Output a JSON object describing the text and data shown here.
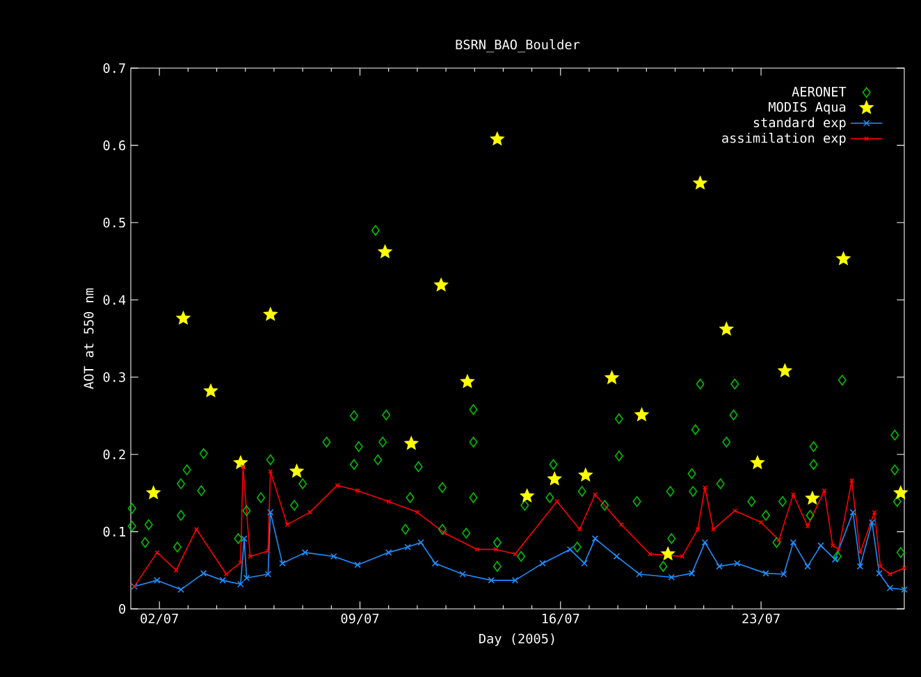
{
  "chart_data": {
    "type": "line",
    "title": "BSRN_BAO_Boulder",
    "xlabel": "Day (2005)",
    "ylabel": "AOT at 550 nm",
    "xlim": [
      "2005-07-01",
      "2005-07-28"
    ],
    "ylim": [
      0,
      0.7
    ],
    "xticks": [
      {
        "value": "2005-07-02",
        "label": "02/07"
      },
      {
        "value": "2005-07-09",
        "label": "09/07"
      },
      {
        "value": "2005-07-16",
        "label": "16/07"
      },
      {
        "value": "2005-07-23",
        "label": "23/07"
      }
    ],
    "yticks": [
      0,
      0.1,
      0.2,
      0.3,
      0.4,
      0.5,
      0.6,
      0.7
    ],
    "legend": "top right",
    "series": [
      {
        "name": "AERONET",
        "type": "scatter",
        "marker": "diamond",
        "color": "#00c000",
        "x": [
          "2005-07-01T01:00",
          "2005-07-01T01:00",
          "2005-07-01T12:00",
          "2005-07-01T15:00",
          "2005-07-02T15:00",
          "2005-07-02T18:00",
          "2005-07-02T18:00",
          "2005-07-02T23:00",
          "2005-07-03T11:00",
          "2005-07-03T13:00",
          "2005-07-04T18:00",
          "2005-07-05T01:00",
          "2005-07-05T13:00",
          "2005-07-05T21:00",
          "2005-07-06T17:00",
          "2005-07-07T00:00",
          "2005-07-07T20:00",
          "2005-07-08T19:00",
          "2005-07-08T23:00",
          "2005-07-08T19:00",
          "2005-07-09T13:00",
          "2005-07-09T15:00",
          "2005-07-09T19:00",
          "2005-07-09T22:00",
          "2005-07-10T14:00",
          "2005-07-10T18:00",
          "2005-07-11T01:00",
          "2005-07-11T21:00",
          "2005-07-11T21:00",
          "2005-07-12T17:00",
          "2005-07-12T23:00",
          "2005-07-12T23:00",
          "2005-07-12T23:00",
          "2005-07-13T19:00",
          "2005-07-13T19:00",
          "2005-07-14T15:00",
          "2005-07-14T18:00",
          "2005-07-15T15:00",
          "2005-07-15T18:00",
          "2005-07-16T14:00",
          "2005-07-16T18:00",
          "2005-07-17T13:00",
          "2005-07-18T01:00",
          "2005-07-18T01:00",
          "2005-07-18T16:00",
          "2005-07-19T14:00",
          "2005-07-19T20:00",
          "2005-07-19T21:00",
          "2005-07-20T14:00",
          "2005-07-20T15:00",
          "2005-07-20T17:00",
          "2005-07-20T21:00",
          "2005-07-21T14:00",
          "2005-07-21T19:00",
          "2005-07-22T01:00",
          "2005-07-22T02:00",
          "2005-07-22T16:00",
          "2005-07-23T04:00",
          "2005-07-23T13:00",
          "2005-07-23T18:00",
          "2005-07-24T17:00",
          "2005-07-24T20:00",
          "2005-07-24T20:00",
          "2005-07-25T16:00",
          "2005-07-25T20:00",
          "2005-07-27T16:00",
          "2005-07-27T16:00",
          "2005-07-27T18:00",
          "2005-07-27T21:00"
        ],
        "values": [
          0.13,
          0.107,
          0.086,
          0.109,
          0.08,
          0.162,
          0.121,
          0.18,
          0.153,
          0.201,
          0.091,
          0.127,
          0.144,
          0.193,
          0.134,
          0.162,
          0.216,
          0.25,
          0.21,
          0.187,
          0.49,
          0.193,
          0.216,
          0.251,
          0.103,
          0.144,
          0.184,
          0.157,
          0.103,
          0.098,
          0.258,
          0.216,
          0.144,
          0.086,
          0.055,
          0.068,
          0.134,
          0.144,
          0.187,
          0.08,
          0.152,
          0.134,
          0.246,
          0.198,
          0.139,
          0.055,
          0.152,
          0.091,
          0.175,
          0.152,
          0.232,
          0.291,
          0.162,
          0.216,
          0.251,
          0.291,
          0.139,
          0.121,
          0.086,
          0.139,
          0.121,
          0.21,
          0.187,
          0.068,
          0.296,
          0.225,
          0.18,
          0.139,
          0.073
        ]
      },
      {
        "name": "MODIS Aqua",
        "type": "scatter",
        "marker": "star",
        "color": "#ffff00",
        "x": [
          "2005-07-01T19:00",
          "2005-07-02T20:00",
          "2005-07-03T19:00",
          "2005-07-04T20:00",
          "2005-07-05T21:00",
          "2005-07-06T19:00",
          "2005-07-09T21:00",
          "2005-07-10T19:00",
          "2005-07-11T20:00",
          "2005-07-12T18:00",
          "2005-07-13T19:00",
          "2005-07-14T20:00",
          "2005-07-15T19:00",
          "2005-07-16T21:00",
          "2005-07-17T19:00",
          "2005-07-18T20:00",
          "2005-07-19T18:00",
          "2005-07-20T21:00",
          "2005-07-21T19:00",
          "2005-07-22T21:00",
          "2005-07-23T20:00",
          "2005-07-24T19:00",
          "2005-07-25T21:00",
          "2005-07-27T21:00"
        ],
        "values": [
          0.15,
          0.376,
          0.282,
          0.189,
          0.381,
          0.178,
          0.462,
          0.214,
          0.419,
          0.294,
          0.608,
          0.146,
          0.168,
          0.173,
          0.299,
          0.251,
          0.071,
          0.551,
          0.362,
          0.189,
          0.308,
          0.143,
          0.453,
          0.15
        ]
      },
      {
        "name": "standard exp",
        "marker": "cross",
        "color": "#1e8fff",
        "x": [
          "2005-07-01T03:00",
          "2005-07-01T22:00",
          "2005-07-02T18:00",
          "2005-07-03T13:00",
          "2005-07-04T05:00",
          "2005-07-04T20:00",
          "2005-07-04T23:00",
          "2005-07-05T01:00",
          "2005-07-05T19:00",
          "2005-07-05T21:00",
          "2005-07-06T07:00",
          "2005-07-07T02:00",
          "2005-07-08T02:00",
          "2005-07-08T22:00",
          "2005-07-10T00:00",
          "2005-07-10T16:00",
          "2005-07-11T03:00",
          "2005-07-11T15:00",
          "2005-07-12T14:00",
          "2005-07-13T14:00",
          "2005-07-14T10:00",
          "2005-07-15T09:00",
          "2005-07-16T08:00",
          "2005-07-16T20:00",
          "2005-07-17T05:00",
          "2005-07-17T23:00",
          "2005-07-18T18:00",
          "2005-07-19T21:00",
          "2005-07-20T14:00",
          "2005-07-21T01:00",
          "2005-07-21T13:00",
          "2005-07-22T04:00",
          "2005-07-23T04:00",
          "2005-07-23T19:00",
          "2005-07-24T03:00",
          "2005-07-24T15:00",
          "2005-07-25T02:00",
          "2005-07-25T14:00",
          "2005-07-26T05:00",
          "2005-07-26T11:00",
          "2005-07-26T21:00",
          "2005-07-27T03:00",
          "2005-07-27T12:00",
          "2005-07-28T00:00"
        ],
        "values": [
          0.029,
          0.037,
          0.025,
          0.046,
          0.037,
          0.032,
          0.091,
          0.04,
          0.045,
          0.125,
          0.059,
          0.073,
          0.068,
          0.057,
          0.073,
          0.08,
          0.086,
          0.059,
          0.045,
          0.037,
          0.037,
          0.059,
          0.077,
          0.059,
          0.091,
          0.068,
          0.045,
          0.041,
          0.046,
          0.086,
          0.055,
          0.059,
          0.046,
          0.045,
          0.086,
          0.055,
          0.082,
          0.064,
          0.125,
          0.055,
          0.112,
          0.046,
          0.027,
          0.025
        ]
      },
      {
        "name": "assimilation exp",
        "marker": "cross",
        "color": "#ff0000",
        "x": [
          "2005-07-01T03:00",
          "2005-07-01T22:00",
          "2005-07-02T14:00",
          "2005-07-03T07:00",
          "2005-07-04T08:00",
          "2005-07-04T20:00",
          "2005-07-04T22:00",
          "2005-07-05T04:00",
          "2005-07-05T19:00",
          "2005-07-05T21:00",
          "2005-07-06T11:00",
          "2005-07-07T06:00",
          "2005-07-08T05:00",
          "2005-07-08T22:00",
          "2005-07-10T00:00",
          "2005-07-11T00:00",
          "2005-07-11T23:00",
          "2005-07-13T02:00",
          "2005-07-13T18:00",
          "2005-07-14T10:00",
          "2005-07-15T21:00",
          "2005-07-16T16:00",
          "2005-07-17T05:00",
          "2005-07-18T03:00",
          "2005-07-19T03:00",
          "2005-07-20T06:00",
          "2005-07-20T19:00",
          "2005-07-21T01:00",
          "2005-07-21T08:00",
          "2005-07-22T02:00",
          "2005-07-23T00:00",
          "2005-07-23T15:00",
          "2005-07-24T03:00",
          "2005-07-24T15:00",
          "2005-07-25T05:00",
          "2005-07-25T12:00",
          "2005-07-25T17:00",
          "2005-07-26T04:00",
          "2005-07-26T11:00",
          "2005-07-26T23:00",
          "2005-07-27T04:00",
          "2005-07-27T12:00",
          "2005-07-28T00:00"
        ],
        "values": [
          0.029,
          0.073,
          0.05,
          0.103,
          0.045,
          0.06,
          0.184,
          0.068,
          0.075,
          0.178,
          0.109,
          0.125,
          0.16,
          0.153,
          0.139,
          0.125,
          0.098,
          0.077,
          0.077,
          0.071,
          0.139,
          0.103,
          0.148,
          0.109,
          0.071,
          0.068,
          0.103,
          0.157,
          0.103,
          0.127,
          0.112,
          0.089,
          0.148,
          0.107,
          0.153,
          0.082,
          0.077,
          0.166,
          0.073,
          0.125,
          0.055,
          0.045,
          0.053
        ]
      }
    ]
  }
}
